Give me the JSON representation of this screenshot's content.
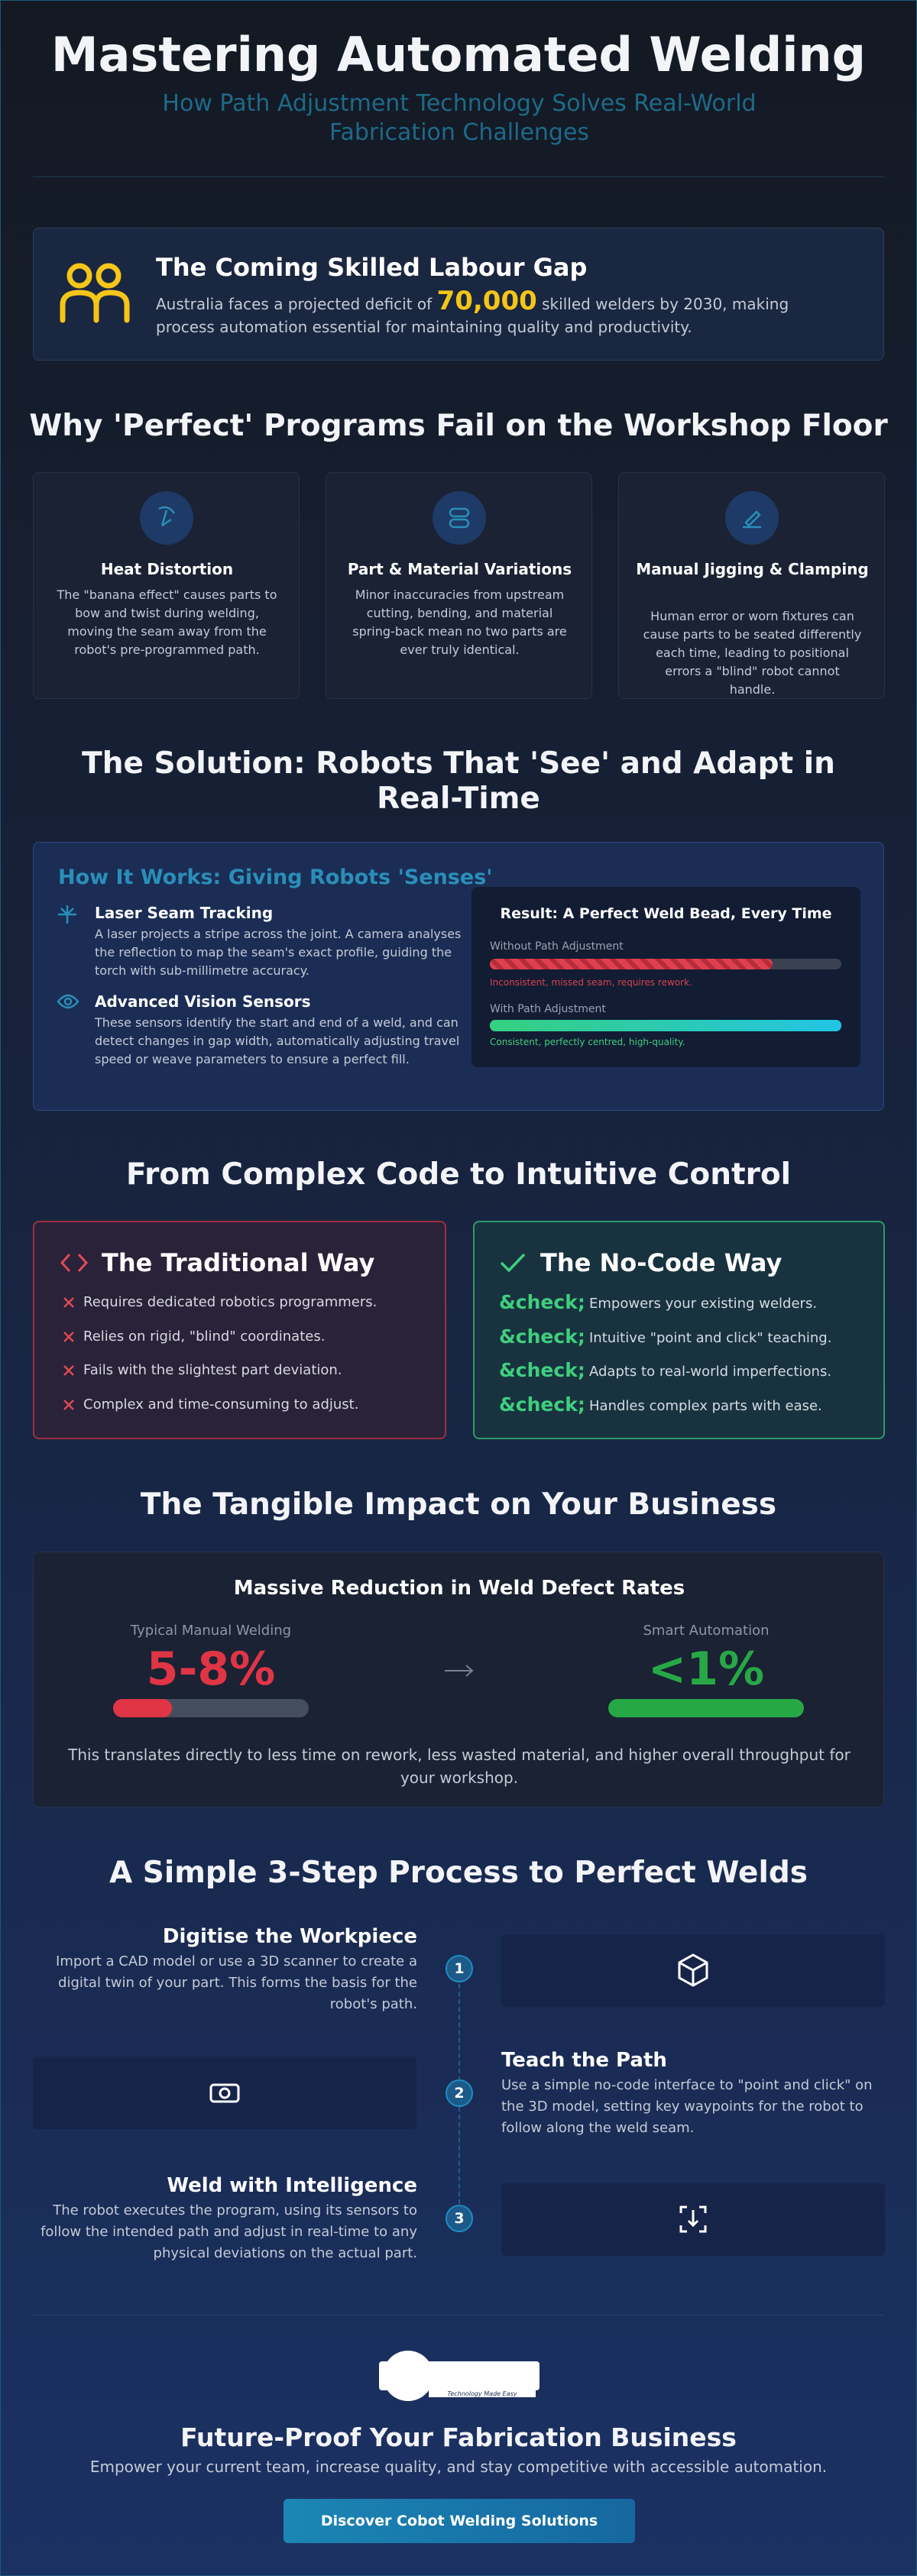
{
  "header": {
    "title": "Mastering Automated Welding",
    "subtitle": "How Path Adjustment Technology Solves Real-World Fabrication Challenges"
  },
  "labour_gap": {
    "title": "The Coming Skilled Labour Gap",
    "text_before": "Australia faces a projected deficit of",
    "highlight": "70,000",
    "text_after": "skilled welders by 2030, making process automation essential for maintaining quality and productivity."
  },
  "problems": {
    "heading": "Why 'Perfect' Programs Fail on the Workshop Floor",
    "cards": [
      {
        "title": "Heat Distortion",
        "text": "The \"banana effect\" causes parts to bow and twist during welding, moving the seam away from the robot's pre-programmed path."
      },
      {
        "title": "Part & Material Variations",
        "text": "Minor inaccuracies from upstream cutting, bending, and material spring-back mean no two parts are ever truly identical."
      },
      {
        "title": "Manual Jigging & Clamping",
        "text": "Human error or worn fixtures can cause parts to be seated differently each time, leading to positional errors a \"blind\" robot cannot handle."
      }
    ]
  },
  "solution": {
    "heading": "The Solution: Robots That 'See' and Adapt in Real-Time",
    "how_title": "How It Works: Giving Robots 'Senses'",
    "features": [
      {
        "title": "Laser Seam Tracking",
        "text": "A laser projects a stripe across the joint. A camera analyses the reflection to map the seam's exact profile, guiding the torch with sub-millimetre accuracy."
      },
      {
        "title": "Advanced Vision Sensors",
        "text": "These sensors identify the start and end of a weld, and can detect changes in gap width, automatically adjusting travel speed or weave parameters to ensure a perfect fill."
      }
    ],
    "result": {
      "title": "Result: A Perfect Weld Bead, Every Time",
      "without_label": "Without Path Adjustment",
      "without_note": "Inconsistent, missed seam, requires rework.",
      "with_label": "With Path Adjustment",
      "with_note": "Consistent, perfectly centred, high-quality."
    }
  },
  "control": {
    "heading": "From Complex Code to Intuitive Control",
    "traditional": {
      "title": "The Traditional Way",
      "items": [
        "Requires dedicated robotics programmers.",
        "Relies on rigid, \"blind\" coordinates.",
        "Fails with the slightest part deviation.",
        "Complex and time-consuming to adjust."
      ]
    },
    "nocode": {
      "title": "The No-Code Way",
      "items": [
        {
          "marker": "&check;",
          "text": "Empowers your existing welders."
        },
        {
          "marker": "&check;",
          "text": "Intuitive \"point and click\" teaching."
        },
        {
          "marker": "&check;",
          "text": "Adapts to real-world imperfections."
        },
        {
          "marker": "&check;",
          "text": "Handles complex parts with ease."
        }
      ]
    }
  },
  "impact": {
    "heading": "The Tangible Impact on Your Business",
    "card_title": "Massive Reduction in Weld Defect Rates",
    "manual_label": "Typical Manual Welding",
    "manual_value": "5-8%",
    "auto_label": "Smart Automation",
    "auto_value": "<1%",
    "note": "This translates directly to less time on rework, less wasted material, and higher overall throughput for your workshop."
  },
  "process": {
    "heading": "A Simple 3-Step Process to Perfect Welds",
    "steps": [
      {
        "number": 1,
        "title": "Digitise the Workpiece",
        "text": "Import a CAD model or use a 3D scanner to create a digital twin of your part. This forms the basis for the robot's path."
      },
      {
        "number": 2,
        "title": "Teach the Path",
        "text": "Use a simple no-code interface to \"point and click\" on the 3D model, setting key waypoints for the robot to follow along the weld seam."
      },
      {
        "number": 3,
        "title": "Weld with Intelligence",
        "text": "The robot executes the program, using its sensors to follow the intended path and adjust in real-time to any physical deviations on the actual part."
      }
    ]
  },
  "footer": {
    "logo_tagline": "Technology Made Easy",
    "title": "Future-Proof Your Fabrication Business",
    "text": "Empower your current team, increase quality, and stay competitive with accessible automation.",
    "button": "Discover Cobot Welding Solutions"
  }
}
